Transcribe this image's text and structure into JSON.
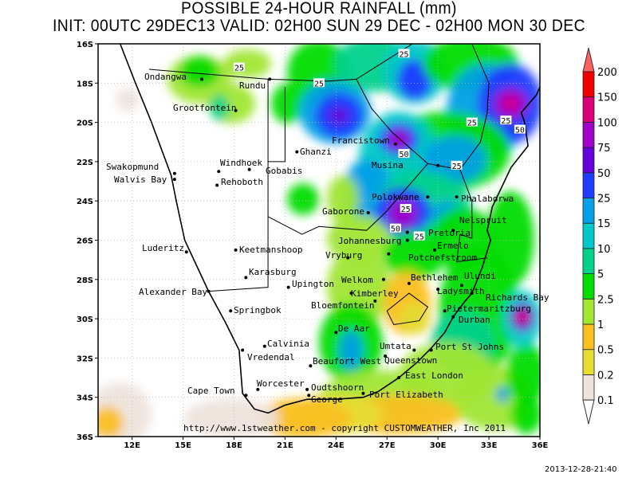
{
  "title": "POSSIBLE 24-HOUR  RAINFALL (mm)",
  "subtitle": "INIT: 00UTC 29DEC13   VALID: 02H00 SUN 29 DEC  -  02H00 MON 30 DEC",
  "timestamp": "2013-12-28-21:40",
  "credit": "http://www.1stweather.com - copyright CUSTOMWEATHER, Inc 2011",
  "map": {
    "lon_range": [
      10,
      36
    ],
    "lat_range": [
      -36,
      -16
    ],
    "lon_ticks": [
      "12E",
      "15E",
      "18E",
      "21E",
      "24E",
      "27E",
      "30E",
      "33E",
      "36E"
    ],
    "lat_ticks": [
      "16S",
      "18S",
      "20S",
      "22S",
      "24S",
      "26S",
      "28S",
      "30S",
      "32S",
      "34S",
      "36S"
    ]
  },
  "legend": {
    "levels": [
      "0.1",
      "0.2",
      "0.5",
      "1",
      "2.5",
      "5",
      "10",
      "15",
      "25",
      "50",
      "75",
      "100",
      "150",
      "200"
    ],
    "colors": [
      "#eee4dc",
      "#e6dc32",
      "#fac020",
      "#a0e632",
      "#00dc00",
      "#00d28c",
      "#00c8c8",
      "#00a0e6",
      "#1e3cff",
      "#6400dc",
      "#a000c8",
      "#dc0078",
      "#f00000"
    ],
    "over_color": "#ff6060",
    "under_color": "#ffffff"
  },
  "contour_labels": [
    {
      "text": "25",
      "lon": 18.3,
      "lat": -17.2
    },
    {
      "text": "25",
      "lon": 23.0,
      "lat": -18.0
    },
    {
      "text": "25",
      "lon": 28.0,
      "lat": -16.5
    },
    {
      "text": "25",
      "lon": 32.0,
      "lat": -20.0
    },
    {
      "text": "25",
      "lon": 34.0,
      "lat": -19.9
    },
    {
      "text": "50",
      "lon": 34.4,
      "lat": -20.2
    },
    {
      "text": "50",
      "lon": 28.0,
      "lat": -21.6
    },
    {
      "text": "25",
      "lon": 31.1,
      "lat": -22.2
    },
    {
      "text": "25",
      "lon": 28.1,
      "lat": -24.4
    },
    {
      "text": "50",
      "lon": 27.5,
      "lat": -25.4
    },
    {
      "text": "25",
      "lon": 28.9,
      "lat": -25.8
    }
  ],
  "cities": [
    {
      "name": "Ondangwa",
      "lon": 16.1,
      "lat": -17.8
    },
    {
      "name": "Rundu",
      "lon": 20.1,
      "lat": -17.8
    },
    {
      "name": "Grootfontein",
      "lon": 18.1,
      "lat": -19.4
    },
    {
      "name": "Swakopmund",
      "lon": 14.5,
      "lat": -22.6
    },
    {
      "name": "Walvis Bay",
      "lon": 14.5,
      "lat": -22.9
    },
    {
      "name": "Windhoek",
      "lon": 17.1,
      "lat": -22.5
    },
    {
      "name": "Gobabis",
      "lon": 18.9,
      "lat": -22.4
    },
    {
      "name": "Rehoboth",
      "lon": 17.0,
      "lat": -23.2
    },
    {
      "name": "Ghanzi",
      "lon": 21.7,
      "lat": -21.5
    },
    {
      "name": "Francistown",
      "lon": 27.5,
      "lat": -21.1
    },
    {
      "name": "Musina",
      "lon": 30.0,
      "lat": -22.2
    },
    {
      "name": "Phalaborwa",
      "lon": 31.1,
      "lat": -23.8
    },
    {
      "name": "Polokwane",
      "lon": 29.4,
      "lat": -23.8
    },
    {
      "name": "Gaborone",
      "lon": 25.9,
      "lat": -24.6
    },
    {
      "name": "Pretoria",
      "lon": 28.2,
      "lat": -25.6
    },
    {
      "name": "Nelspruit",
      "lon": 30.9,
      "lat": -25.5
    },
    {
      "name": "Johannesburg",
      "lon": 28.2,
      "lat": -26.0
    },
    {
      "name": "Ermelo",
      "lon": 29.8,
      "lat": -26.5
    },
    {
      "name": "Potchefstroom",
      "lon": 27.1,
      "lat": -26.7
    },
    {
      "name": "Vryburg",
      "lon": 24.7,
      "lat": -26.9
    },
    {
      "name": "Keetmanshoop",
      "lon": 18.1,
      "lat": -26.5
    },
    {
      "name": "Luderitz",
      "lon": 15.2,
      "lat": -26.6
    },
    {
      "name": "Karasburg",
      "lon": 18.7,
      "lat": -27.9
    },
    {
      "name": "Upington",
      "lon": 21.2,
      "lat": -28.4
    },
    {
      "name": "Welkom",
      "lon": 26.8,
      "lat": -28.0
    },
    {
      "name": "Bethlehem",
      "lon": 28.3,
      "lat": -28.2
    },
    {
      "name": "Ladysmith",
      "lon": 30.0,
      "lat": -28.5
    },
    {
      "name": "Ulundi",
      "lon": 31.4,
      "lat": -28.3
    },
    {
      "name": "Richards Bay",
      "lon": 32.0,
      "lat": -28.7
    },
    {
      "name": "Kimberley",
      "lon": 24.9,
      "lat": -28.7
    },
    {
      "name": "Bloemfontein",
      "lon": 26.3,
      "lat": -29.1
    },
    {
      "name": "Alexander Bay",
      "lon": 16.5,
      "lat": -28.6
    },
    {
      "name": "Springbok",
      "lon": 17.8,
      "lat": -29.6
    },
    {
      "name": "Pietermaritzburg",
      "lon": 30.4,
      "lat": -29.6
    },
    {
      "name": "Durban",
      "lon": 30.9,
      "lat": -29.9
    },
    {
      "name": "De Aar",
      "lon": 24.0,
      "lat": -30.7
    },
    {
      "name": "Calvinia",
      "lon": 19.8,
      "lat": -31.4
    },
    {
      "name": "Vredendal",
      "lon": 18.5,
      "lat": -31.6
    },
    {
      "name": "Umtata",
      "lon": 28.6,
      "lat": -31.6
    },
    {
      "name": "Port St Johns",
      "lon": 29.6,
      "lat": -31.6
    },
    {
      "name": "Queenstown",
      "lon": 26.9,
      "lat": -31.9
    },
    {
      "name": "Beaufort West",
      "lon": 22.5,
      "lat": -32.4
    },
    {
      "name": "East London",
      "lon": 27.7,
      "lat": -33.0
    },
    {
      "name": "Worcester",
      "lon": 19.4,
      "lat": -33.6
    },
    {
      "name": "Oudtshoorn",
      "lon": 22.3,
      "lat": -33.6
    },
    {
      "name": "Cape Town",
      "lon": 18.7,
      "lat": -33.9
    },
    {
      "name": "George",
      "lon": 22.4,
      "lat": -33.9
    },
    {
      "name": "Port Elizabeth",
      "lon": 25.6,
      "lat": -33.8
    }
  ]
}
